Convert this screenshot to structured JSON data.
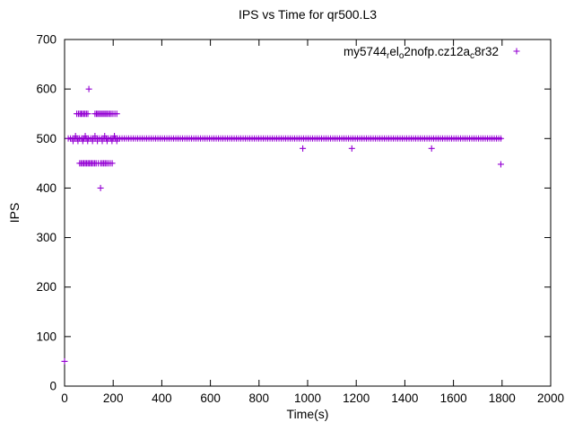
{
  "chart_data": {
    "type": "scatter",
    "title": "IPS vs Time for qr500.L3",
    "xlabel": "Time(s)",
    "ylabel": "IPS",
    "xlim": [
      0,
      2000
    ],
    "ylim": [
      0,
      700
    ],
    "xticks": [
      0,
      200,
      400,
      600,
      800,
      1000,
      1200,
      1400,
      1600,
      1800,
      2000
    ],
    "yticks": [
      0,
      100,
      200,
      300,
      400,
      500,
      600,
      700
    ],
    "grid": false,
    "legend_position": "top-right-inside",
    "marker": "plus",
    "color": "#9400D3",
    "legend_label_plain": "my5744_rel_o2nofp.cz12a_c8r32",
    "legend_segments": [
      {
        "text": "my5744"
      },
      {
        "text": "r",
        "sub": true
      },
      {
        "text": "el"
      },
      {
        "text": "o",
        "sub": true
      },
      {
        "text": "2nofp.cz12a"
      },
      {
        "text": "c",
        "sub": true
      },
      {
        "text": "8r32"
      }
    ],
    "series": [
      {
        "name": "my5744_rel_o2nofp.cz12a_c8r32",
        "band": {
          "y": 500,
          "x_start": 15,
          "x_end": 1800
        },
        "points": [
          [
            0,
            50
          ],
          [
            100,
            600
          ],
          [
            148,
            400
          ],
          [
            980,
            480
          ],
          [
            1182,
            480
          ],
          [
            1510,
            480
          ],
          [
            1795,
            448
          ],
          [
            50,
            550
          ],
          [
            57,
            550
          ],
          [
            63,
            550
          ],
          [
            68,
            550
          ],
          [
            73,
            550
          ],
          [
            79,
            550
          ],
          [
            84,
            550
          ],
          [
            90,
            550
          ],
          [
            96,
            550
          ],
          [
            125,
            550
          ],
          [
            131,
            550
          ],
          [
            136,
            550
          ],
          [
            141,
            550
          ],
          [
            147,
            550
          ],
          [
            152,
            550
          ],
          [
            158,
            550
          ],
          [
            163,
            550
          ],
          [
            169,
            550
          ],
          [
            174,
            550
          ],
          [
            180,
            550
          ],
          [
            186,
            550
          ],
          [
            192,
            550
          ],
          [
            199,
            550
          ],
          [
            207,
            550
          ],
          [
            215,
            550
          ],
          [
            62,
            450
          ],
          [
            68,
            450
          ],
          [
            74,
            450
          ],
          [
            79,
            450
          ],
          [
            85,
            450
          ],
          [
            90,
            450
          ],
          [
            96,
            450
          ],
          [
            101,
            450
          ],
          [
            107,
            450
          ],
          [
            112,
            450
          ],
          [
            118,
            450
          ],
          [
            124,
            450
          ],
          [
            130,
            450
          ],
          [
            139,
            450
          ],
          [
            149,
            450
          ],
          [
            155,
            450
          ],
          [
            161,
            450
          ],
          [
            167,
            450
          ],
          [
            173,
            450
          ],
          [
            180,
            450
          ],
          [
            188,
            450
          ],
          [
            196,
            450
          ],
          [
            35,
            495
          ],
          [
            55,
            495
          ],
          [
            75,
            495
          ],
          [
            95,
            495
          ],
          [
            115,
            495
          ],
          [
            135,
            495
          ],
          [
            155,
            495
          ],
          [
            175,
            495
          ],
          [
            195,
            495
          ],
          [
            215,
            495
          ],
          [
            45,
            505
          ],
          [
            85,
            505
          ],
          [
            125,
            505
          ],
          [
            165,
            505
          ],
          [
            205,
            505
          ]
        ]
      }
    ]
  }
}
